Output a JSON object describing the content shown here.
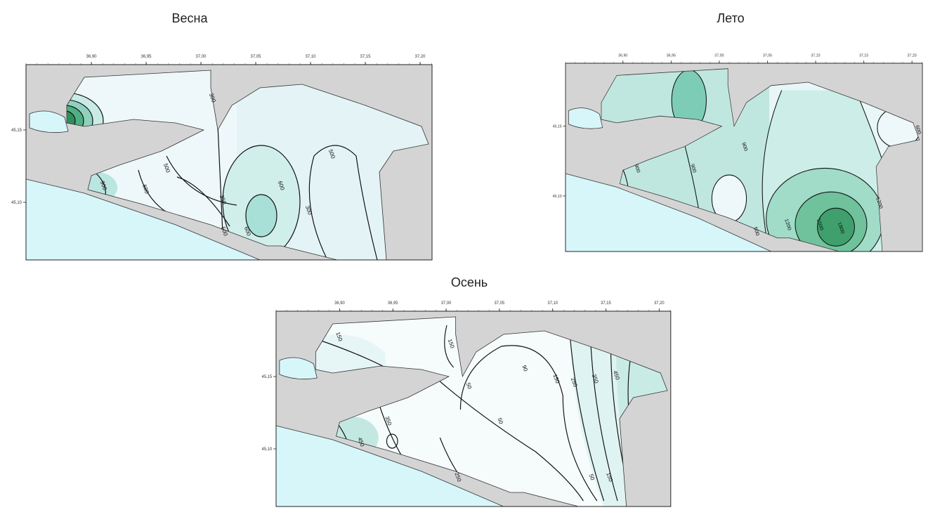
{
  "maps": [
    {
      "title": "Весна",
      "xticks": [
        "36,90",
        "36,95",
        "37,00",
        "37,05",
        "37,10",
        "37,15",
        "37,20"
      ],
      "yticks": [
        "45,15",
        "45,10"
      ],
      "contour_labels": [
        "300",
        "500",
        "600",
        "900",
        "350",
        "600",
        "500",
        "300",
        "500",
        "600"
      ]
    },
    {
      "title": "Лето",
      "xticks": [
        "36,90",
        "36,95",
        "37,00",
        "37,05",
        "37,10",
        "37,15",
        "37,20"
      ],
      "yticks": [
        "45,15",
        "45,10"
      ],
      "contour_labels": [
        "600",
        "900",
        "900",
        "900",
        "500",
        "1200",
        "1500",
        "1800",
        "1200"
      ]
    },
    {
      "title": "Осень",
      "xticks": [
        "36,90",
        "36,95",
        "37,00",
        "37,05",
        "37,10",
        "37,15",
        "37,20"
      ],
      "yticks": [
        "45,15",
        "45,10"
      ],
      "contour_labels": [
        "50",
        "150",
        "90",
        "150",
        "250",
        "350",
        "450",
        "50",
        "50",
        "150",
        "450",
        "350",
        "250",
        "150"
      ]
    }
  ]
}
